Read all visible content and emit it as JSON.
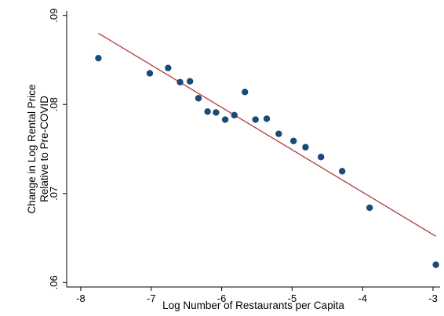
{
  "chart_data": {
    "type": "scatter",
    "title": "",
    "xlabel": "Log Number of Restaurants per Capita",
    "ylabel_lines": [
      "Change in Log Rental Price",
      "Relative to Pre-COVID"
    ],
    "xlim": [
      -8.2,
      -2.9
    ],
    "ylim": [
      0.0595,
      0.0905
    ],
    "xticks": [
      -8,
      -7,
      -6,
      -5,
      -4,
      -3
    ],
    "xtick_labels": [
      "-8",
      "-7",
      "-6",
      "-5",
      "-4",
      "-3"
    ],
    "yticks": [
      0.06,
      0.07,
      0.08,
      0.09
    ],
    "ytick_labels": [
      ".06",
      ".07",
      ".08",
      ".09"
    ],
    "grid": false,
    "legend": "none",
    "series": [
      {
        "type": "scatter",
        "color": "#1a4a7a",
        "points": [
          {
            "x": -7.75,
            "y": 0.0852
          },
          {
            "x": -7.02,
            "y": 0.0835
          },
          {
            "x": -6.76,
            "y": 0.0841
          },
          {
            "x": -6.59,
            "y": 0.0825
          },
          {
            "x": -6.45,
            "y": 0.0826
          },
          {
            "x": -6.33,
            "y": 0.0807
          },
          {
            "x": -6.2,
            "y": 0.0792
          },
          {
            "x": -6.08,
            "y": 0.0791
          },
          {
            "x": -5.95,
            "y": 0.0783
          },
          {
            "x": -5.82,
            "y": 0.0788
          },
          {
            "x": -5.67,
            "y": 0.0814
          },
          {
            "x": -5.52,
            "y": 0.0783
          },
          {
            "x": -5.36,
            "y": 0.0784
          },
          {
            "x": -5.19,
            "y": 0.0767
          },
          {
            "x": -4.98,
            "y": 0.0759
          },
          {
            "x": -4.81,
            "y": 0.0752
          },
          {
            "x": -4.59,
            "y": 0.0741
          },
          {
            "x": -4.29,
            "y": 0.0725
          },
          {
            "x": -3.9,
            "y": 0.0684
          },
          {
            "x": -2.96,
            "y": 0.062
          }
        ]
      },
      {
        "type": "line",
        "color": "#b03a3a",
        "points": [
          {
            "x": -7.75,
            "y": 0.088
          },
          {
            "x": -2.96,
            "y": 0.0652
          }
        ]
      }
    ]
  }
}
